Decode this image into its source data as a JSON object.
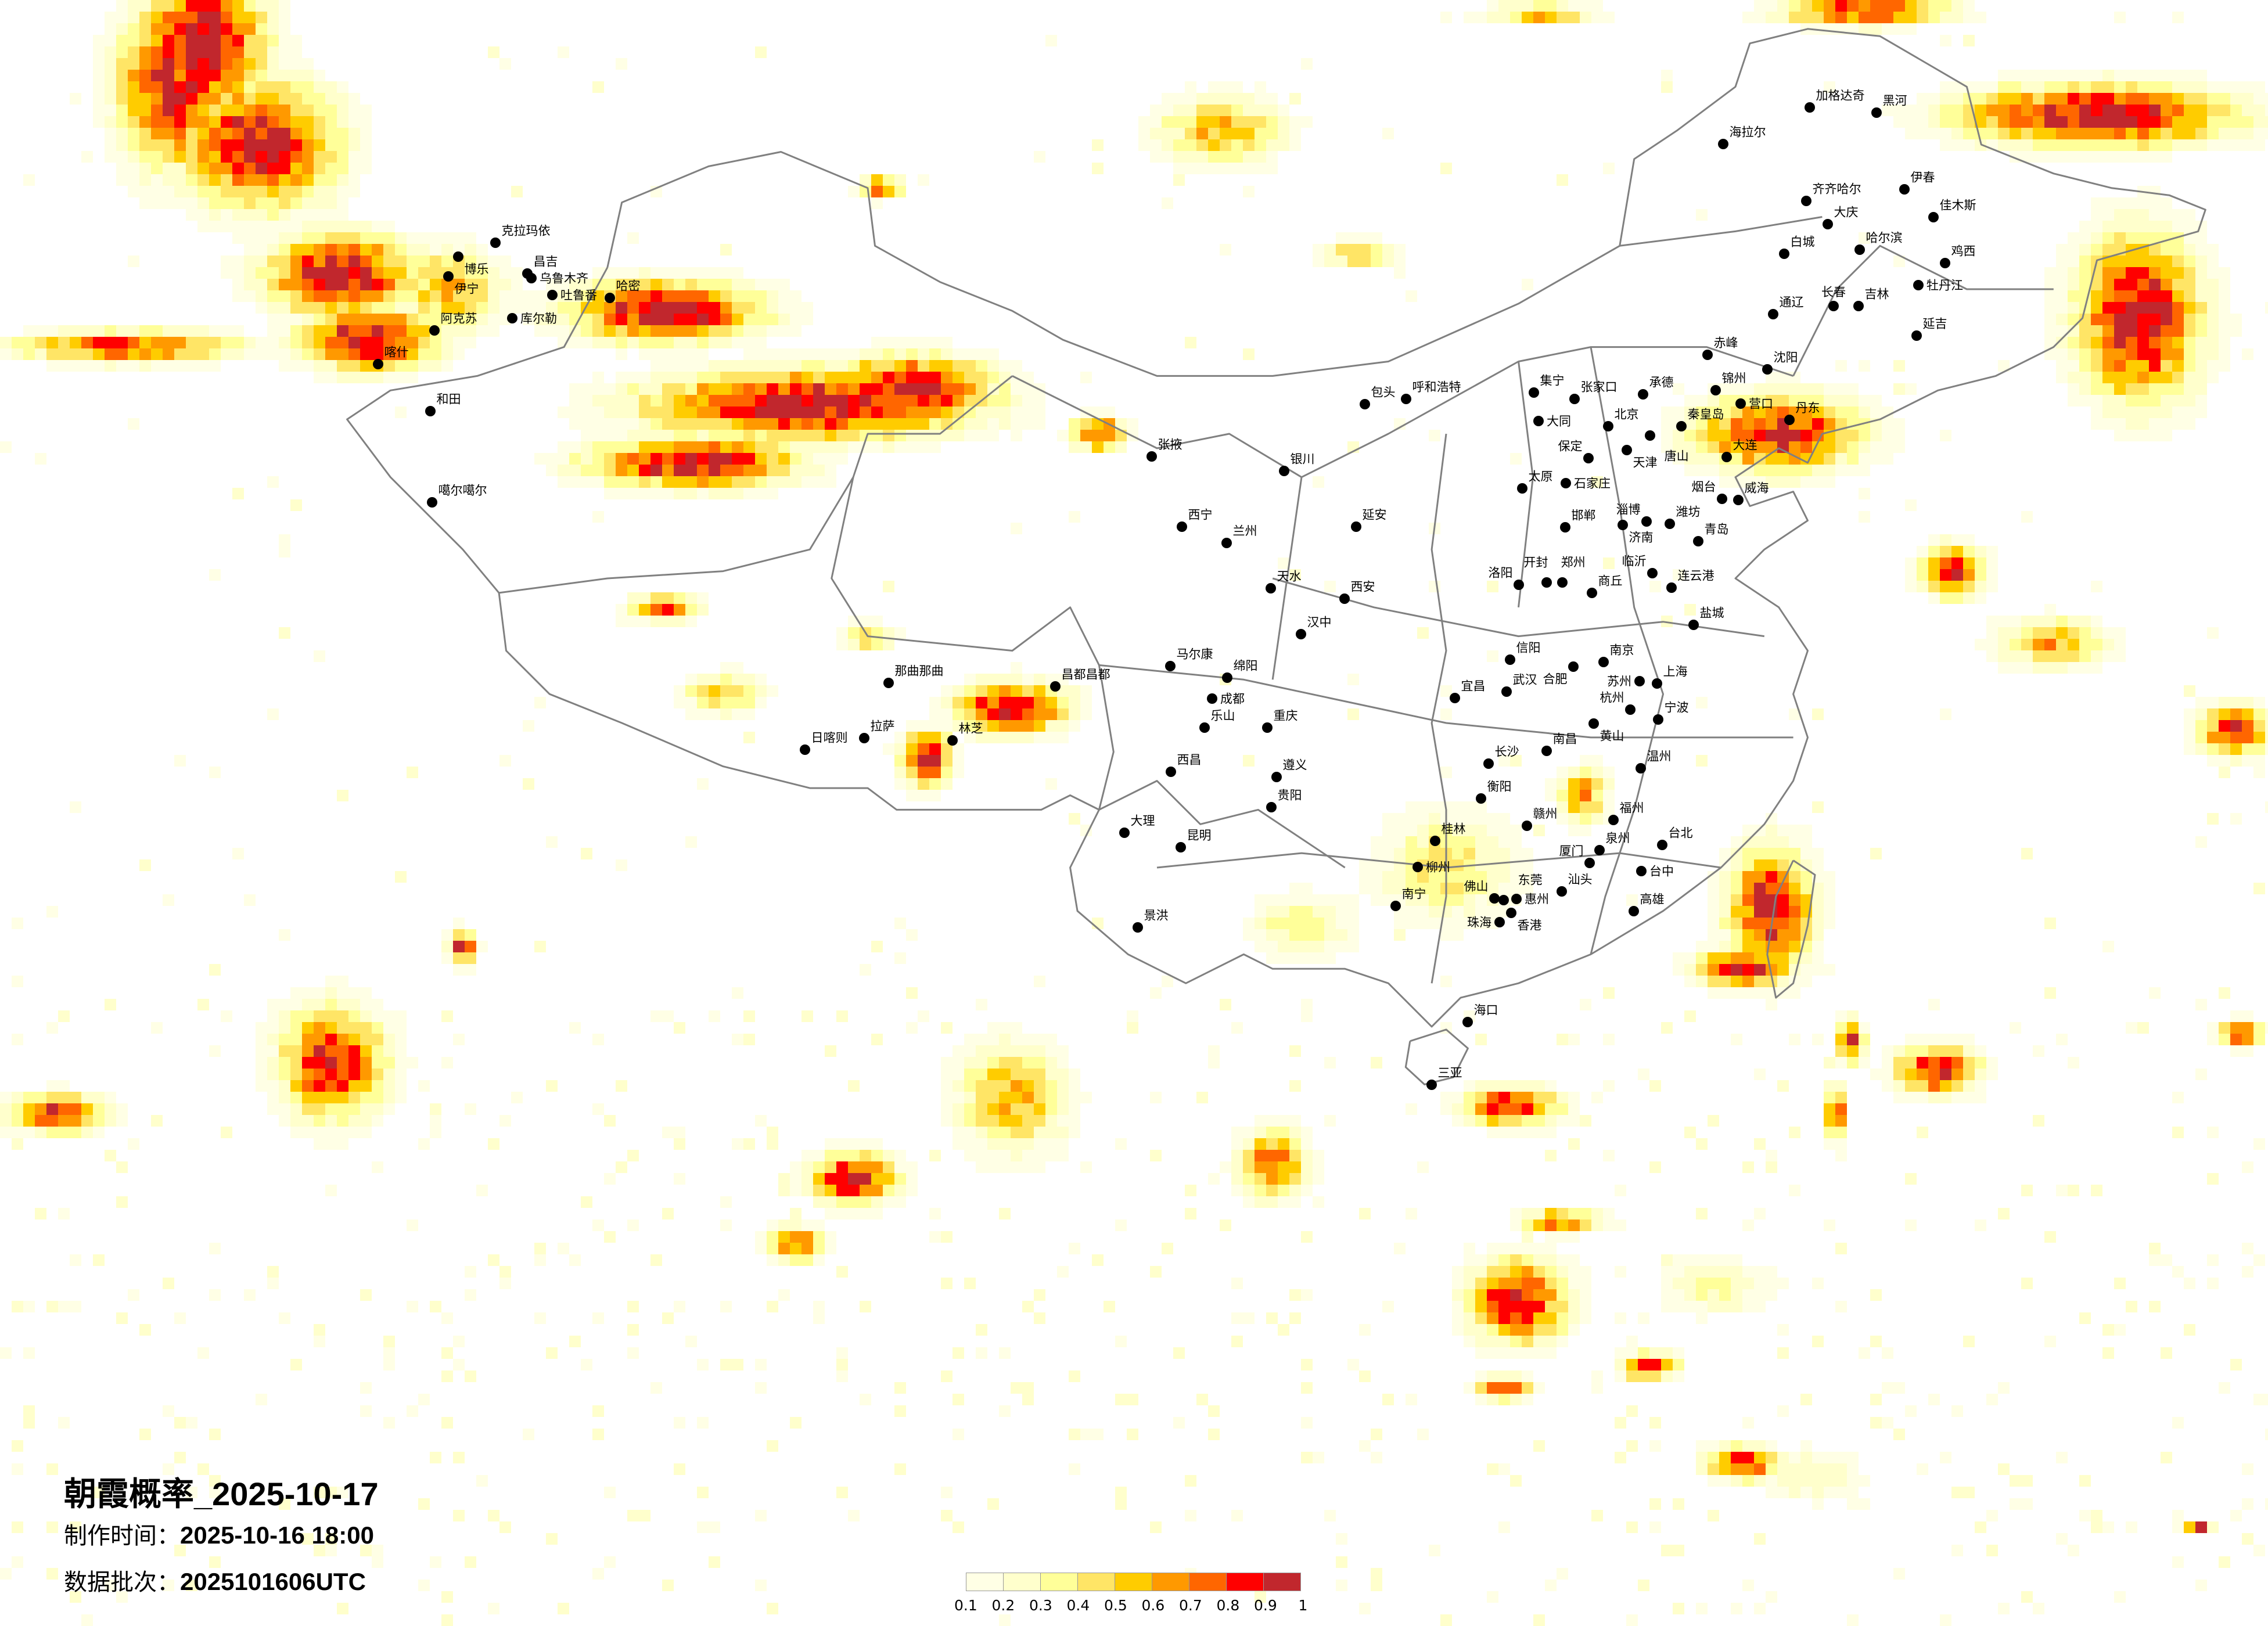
{
  "title": "朝霞概率_2025-10-17",
  "production_time": {
    "label": "制作时间：",
    "value": "2025-10-16 18:00"
  },
  "data_batch": {
    "label": "数据批次：",
    "value": "2025101606UTC"
  },
  "legend": {
    "ticks": [
      "0.1",
      "0.2",
      "0.3",
      "0.4",
      "0.5",
      "0.6",
      "0.7",
      "0.8",
      "0.9",
      "1"
    ],
    "colors": [
      "#FFFFE5",
      "#FFFFCC",
      "#FFFF99",
      "#FFE566",
      "#FFCC00",
      "#FF9900",
      "#FF6600",
      "#FF0000",
      "#C1272D"
    ]
  },
  "map": {
    "border_color": "#808080",
    "city_dot_color": "#000000",
    "cities": [
      "克拉玛依",
      "博乐",
      "伊宁",
      "昌吉",
      "乌鲁木齐",
      "吐鲁番",
      "哈密",
      "库尔勒",
      "阿克苏",
      "喀什",
      "和田",
      "噶尔噶尔",
      "那曲那曲",
      "拉萨",
      "日喀则",
      "林芝",
      "昌都昌都",
      "张掖",
      "西宁",
      "兰州",
      "银川",
      "包头",
      "呼和浩特",
      "延安",
      "西安",
      "天水",
      "汉中",
      "马尔康",
      "成都",
      "绵阳",
      "乐山",
      "重庆",
      "西昌",
      "遵义",
      "贵阳",
      "大理",
      "昆明",
      "景洪",
      "南宁",
      "柳州",
      "桂林",
      "衡阳",
      "长沙",
      "宜昌",
      "武汉",
      "信阳",
      "南昌",
      "赣州",
      "佛山",
      "东莞",
      "惠州",
      "香港",
      "珠海",
      "汕头",
      "厦门",
      "泉州",
      "福州",
      "温州",
      "宁波",
      "杭州",
      "黄山",
      "上海",
      "苏州",
      "南京",
      "合肥",
      "台北",
      "台中",
      "高雄",
      "郑州",
      "开封",
      "洛阳",
      "商丘",
      "连云港",
      "盐城",
      "临沂",
      "济南",
      "淄博",
      "潍坊",
      "青岛",
      "烟台",
      "威海",
      "邯郸",
      "石家庄",
      "太原",
      "保定",
      "北京",
      "天津",
      "唐山",
      "秦皇岛",
      "承德",
      "张家口",
      "集宁",
      "大同",
      "锦州",
      "营口",
      "大连",
      "丹东",
      "沈阳",
      "赤峰",
      "通辽",
      "长春",
      "吉林",
      "延吉",
      "牡丹江",
      "鸡西",
      "哈尔滨",
      "大庆",
      "齐齐哈尔",
      "伊春",
      "佳木斯",
      "白城",
      "海拉尔",
      "加格达奇",
      "黑河",
      "海口",
      "三亚"
    ]
  }
}
